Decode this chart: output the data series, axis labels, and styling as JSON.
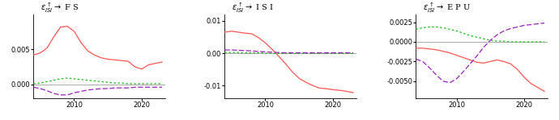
{
  "titles": [
    "ε_{ISI}^↑ → F S",
    "ε_{ISI}^↑ → I S I",
    "ε_{ISI}^↑ → E P U"
  ],
  "x": [
    2004,
    2005,
    2006,
    2007,
    2008,
    2009,
    2010,
    2011,
    2012,
    2013,
    2014,
    2015,
    2016,
    2017,
    2018,
    2019,
    2020,
    2021,
    2022,
    2023
  ],
  "panel1": {
    "red": [
      0.0042,
      0.0045,
      0.0052,
      0.0068,
      0.0082,
      0.0083,
      0.0076,
      0.006,
      0.0048,
      0.0042,
      0.0038,
      0.0036,
      0.0035,
      0.0034,
      0.0033,
      0.0025,
      0.0022,
      0.0028,
      0.003,
      0.0032
    ],
    "green": [
      0.0001,
      0.0002,
      0.0004,
      0.0006,
      0.0008,
      0.0009,
      0.0008,
      0.0007,
      0.0006,
      0.0005,
      0.0004,
      0.0003,
      0.0002,
      0.0002,
      0.0001,
      0.0001,
      0.0001,
      0.0001,
      0.0001,
      0.0001
    ],
    "purple": [
      -0.0004,
      -0.0006,
      -0.0009,
      -0.0013,
      -0.0015,
      -0.0015,
      -0.0012,
      -0.001,
      -0.0008,
      -0.0007,
      -0.0006,
      -0.0006,
      -0.0005,
      -0.0005,
      -0.0005,
      -0.0004,
      -0.0004,
      -0.0004,
      -0.0004,
      -0.0004
    ],
    "ylim": [
      -0.002,
      0.01
    ],
    "yticks": [
      0.0,
      0.005
    ],
    "ytick_labels": [
      "0.000",
      "0.005"
    ]
  },
  "panel2": {
    "red": [
      0.0065,
      0.0068,
      0.0065,
      0.0062,
      0.006,
      0.0048,
      0.0032,
      0.0012,
      -0.001,
      -0.0033,
      -0.0058,
      -0.0078,
      -0.009,
      -0.01,
      -0.0108,
      -0.011,
      -0.0113,
      -0.0115,
      -0.0118,
      -0.0122
    ],
    "green": [
      0.0002,
      0.0002,
      0.0002,
      0.0001,
      0.0001,
      0.0001,
      0.0,
      -0.0001,
      -0.0001,
      -0.0001,
      -0.0001,
      -0.0001,
      -0.0001,
      -0.0001,
      -0.0001,
      -0.0001,
      -0.0001,
      -0.0001,
      -0.0001,
      -0.0001
    ],
    "purple": [
      0.001,
      0.001,
      0.0009,
      0.0008,
      0.0007,
      0.0005,
      0.0004,
      0.0003,
      0.0002,
      0.0001,
      0.0001,
      0.0001,
      0.0001,
      0.0001,
      0.0001,
      0.0001,
      0.0001,
      0.0001,
      0.0001,
      0.0001
    ],
    "ylim": [
      -0.014,
      0.012
    ],
    "yticks": [
      -0.01,
      0.0,
      0.01
    ],
    "ytick_labels": [
      "-0.01",
      "0.00",
      "0.01"
    ]
  },
  "panel3": {
    "red": [
      -0.0008,
      -0.0008,
      -0.0009,
      -0.001,
      -0.0012,
      -0.0014,
      -0.0017,
      -0.002,
      -0.0023,
      -0.0026,
      -0.0027,
      -0.0025,
      -0.0023,
      -0.0025,
      -0.0028,
      -0.0035,
      -0.0045,
      -0.0053,
      -0.0058,
      -0.0063
    ],
    "green": [
      0.0016,
      0.0018,
      0.0019,
      0.0019,
      0.0018,
      0.0016,
      0.0014,
      0.0011,
      0.0008,
      0.0006,
      0.0004,
      0.0002,
      0.0001,
      0.0001,
      0.0,
      0.0,
      0.0,
      0.0,
      0.0,
      0.0
    ],
    "purple": [
      -0.0022,
      -0.0025,
      -0.0033,
      -0.0042,
      -0.005,
      -0.0052,
      -0.0047,
      -0.0038,
      -0.0028,
      -0.0018,
      -0.0007,
      0.0002,
      0.0009,
      0.0014,
      0.0017,
      0.0019,
      0.0021,
      0.0022,
      0.0023,
      0.0024
    ],
    "ylim": [
      -0.0072,
      0.0035
    ],
    "yticks": [
      -0.005,
      -0.0025,
      0.0,
      0.0025
    ],
    "ytick_labels": [
      "-0.0050",
      "-0.0025",
      "0.0000",
      "0.0025"
    ]
  },
  "xticks": [
    2010,
    2020
  ],
  "line_colors": {
    "red": "#FF5555",
    "green": "#22BB22",
    "purple": "#9922BB"
  },
  "bg_color": "#FFFFFF"
}
